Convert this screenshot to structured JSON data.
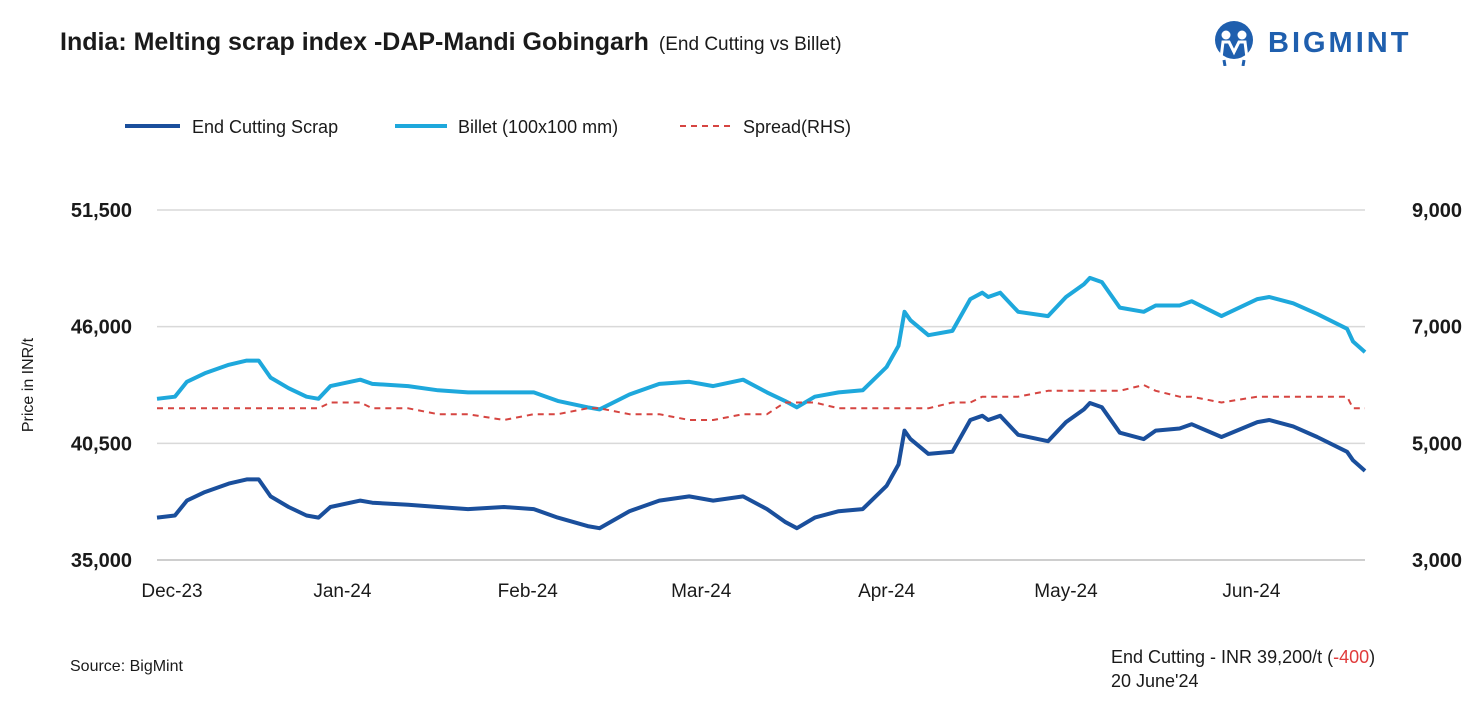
{
  "header": {
    "title": "India: Melting scrap index -DAP-Mandi Gobingarh",
    "subtitle": "(End Cutting vs Billet)",
    "logo_text": "BIGMINT"
  },
  "footer": {
    "source": "Source: BigMint",
    "note_prefix": "End Cutting - INR 39,200/t (",
    "note_change": "-400",
    "note_suffix": ")",
    "note_date": "20 June'24"
  },
  "chart_data": {
    "type": "line",
    "ylabel": "Price in INR/t",
    "ylim": [
      35000,
      51500
    ],
    "yticks": [
      "35,000",
      "40,500",
      "46,000",
      "51,500"
    ],
    "y2lim": [
      3000,
      9000
    ],
    "y2ticks": [
      "3,000",
      "5,000",
      "7,000",
      "9,000"
    ],
    "xticks": [
      {
        "label": "Dec-23",
        "date": "2023-12-01"
      },
      {
        "label": "Jan-24",
        "date": "2024-01-01"
      },
      {
        "label": "Feb-24",
        "date": "2024-02-01"
      },
      {
        "label": "Mar-24",
        "date": "2024-03-01"
      },
      {
        "label": "Apr-24",
        "date": "2024-04-01"
      },
      {
        "label": "May-24",
        "date": "2024-05-01"
      },
      {
        "label": "Jun-24",
        "date": "2024-06-01"
      }
    ],
    "xlim": [
      "2023-12-01",
      "2024-06-20"
    ],
    "grid": "horizontal",
    "legend": "top-left",
    "x": [
      "2023-12-01",
      "2023-12-04",
      "2023-12-06",
      "2023-12-09",
      "2023-12-13",
      "2023-12-16",
      "2023-12-18",
      "2023-12-20",
      "2023-12-23",
      "2023-12-26",
      "2023-12-28",
      "2023-12-30",
      "2024-01-04",
      "2024-01-06",
      "2024-01-12",
      "2024-01-17",
      "2024-01-22",
      "2024-01-28",
      "2024-02-02",
      "2024-02-06",
      "2024-02-11",
      "2024-02-13",
      "2024-02-18",
      "2024-02-23",
      "2024-02-28",
      "2024-03-03",
      "2024-03-08",
      "2024-03-12",
      "2024-03-15",
      "2024-03-17",
      "2024-03-20",
      "2024-03-24",
      "2024-03-28",
      "2024-04-01",
      "2024-04-03",
      "2024-04-04",
      "2024-04-05",
      "2024-04-08",
      "2024-04-12",
      "2024-04-15",
      "2024-04-17",
      "2024-04-18",
      "2024-04-20",
      "2024-04-23",
      "2024-04-28",
      "2024-05-01",
      "2024-05-04",
      "2024-05-05",
      "2024-05-07",
      "2024-05-10",
      "2024-05-14",
      "2024-05-16",
      "2024-05-20",
      "2024-05-22",
      "2024-05-27",
      "2024-06-02",
      "2024-06-04",
      "2024-06-08",
      "2024-06-12",
      "2024-06-17",
      "2024-06-18",
      "2024-06-20"
    ],
    "series": [
      {
        "name": "End Cutting Scrap",
        "axis": "left",
        "color": "#1a4f9c",
        "style": "solid",
        "values": [
          37000,
          37100,
          37800,
          38200,
          38600,
          38800,
          38800,
          38000,
          37500,
          37100,
          37000,
          37500,
          37800,
          37700,
          37600,
          37500,
          37400,
          37500,
          37400,
          37000,
          36600,
          36500,
          37300,
          37800,
          38000,
          37800,
          38000,
          37400,
          36800,
          36500,
          37000,
          37300,
          37400,
          38500,
          39500,
          41100,
          40700,
          40000,
          40100,
          41600,
          41800,
          41600,
          41800,
          40900,
          40600,
          41500,
          42100,
          42400,
          42200,
          41000,
          40700,
          41100,
          41200,
          41400,
          40800,
          41500,
          41600,
          41300,
          40800,
          40100,
          39700,
          39200
        ]
      },
      {
        "name": "Billet (100x100 mm)",
        "axis": "left",
        "color": "#1ea8dc",
        "style": "solid",
        "values": [
          42600,
          42700,
          43400,
          43800,
          44200,
          44400,
          44400,
          43600,
          43100,
          42700,
          42600,
          43200,
          43500,
          43300,
          43200,
          43000,
          42900,
          42900,
          42900,
          42500,
          42200,
          42100,
          42800,
          43300,
          43400,
          43200,
          43500,
          42900,
          42500,
          42200,
          42700,
          42900,
          43000,
          44100,
          45100,
          46700,
          46300,
          45600,
          45800,
          47300,
          47600,
          47400,
          47600,
          46700,
          46500,
          47400,
          48000,
          48300,
          48100,
          46900,
          46700,
          47000,
          47000,
          47200,
          46500,
          47300,
          47400,
          47100,
          46600,
          45900,
          45300,
          44800
        ]
      },
      {
        "name": "Spread(RHS)",
        "axis": "right",
        "color": "#d64541",
        "style": "dashed",
        "values": [
          5600,
          5600,
          5600,
          5600,
          5600,
          5600,
          5600,
          5600,
          5600,
          5600,
          5600,
          5700,
          5700,
          5600,
          5600,
          5500,
          5500,
          5400,
          5500,
          5500,
          5600,
          5600,
          5500,
          5500,
          5400,
          5400,
          5500,
          5500,
          5700,
          5700,
          5700,
          5600,
          5600,
          5600,
          5600,
          5600,
          5600,
          5600,
          5700,
          5700,
          5800,
          5800,
          5800,
          5800,
          5900,
          5900,
          5900,
          5900,
          5900,
          5900,
          6000,
          5900,
          5800,
          5800,
          5700,
          5800,
          5800,
          5800,
          5800,
          5800,
          5600,
          5600
        ]
      }
    ]
  }
}
